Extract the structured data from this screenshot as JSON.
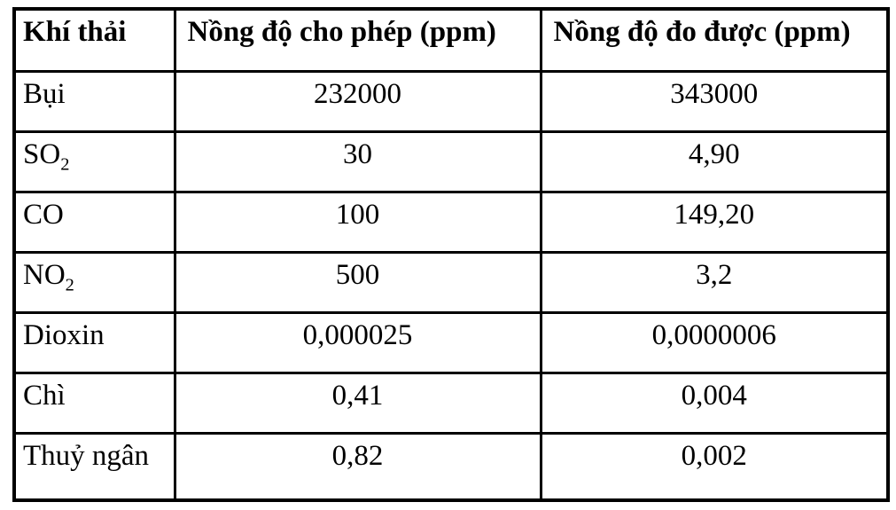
{
  "colors": {
    "background": "#ffffff",
    "border": "#000000",
    "text": "#000000"
  },
  "table": {
    "headers": [
      "Khí thải",
      "Nồng độ cho phép (ppm)",
      "Nồng độ đo được (ppm)"
    ],
    "rows": [
      {
        "gas": "Bụi",
        "gas_sub": "",
        "allowed": "232000",
        "measured": "343000"
      },
      {
        "gas": "SO",
        "gas_sub": "2",
        "allowed": "30",
        "measured": "4,90"
      },
      {
        "gas": "CO",
        "gas_sub": "",
        "allowed": "100",
        "measured": "149,20"
      },
      {
        "gas": "NO",
        "gas_sub": "2",
        "allowed": "500",
        "measured": "3,2"
      },
      {
        "gas": "Dioxin",
        "gas_sub": "",
        "allowed": "0,000025",
        "measured": "0,0000006"
      },
      {
        "gas": "Chì",
        "gas_sub": "",
        "allowed": "0,41",
        "measured": "0,004"
      },
      {
        "gas": "Thuỷ ngân",
        "gas_sub": "",
        "allowed": "0,82",
        "measured": "0,002"
      }
    ]
  }
}
